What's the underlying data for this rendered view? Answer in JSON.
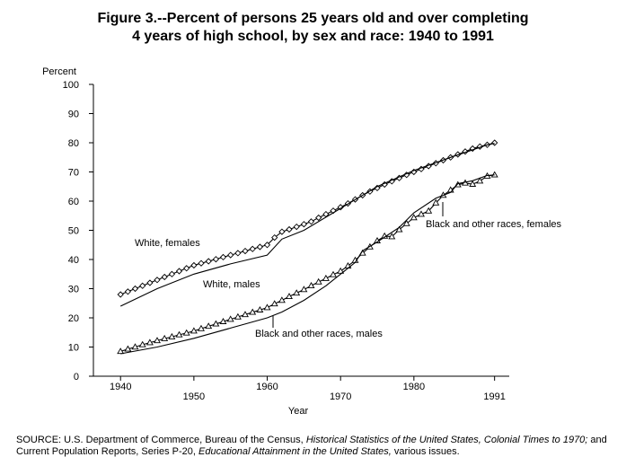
{
  "title": {
    "line1": "Figure 3.--Percent of persons 25 years old and over completing",
    "line2": "4 years of high school, by sex and race:  1940 to 1991"
  },
  "chart_data": {
    "type": "line",
    "ylabel": "Percent",
    "xlabel": "Year",
    "xlim": [
      1936.3,
      1993
    ],
    "ylim": [
      0,
      100
    ],
    "yticks": [
      0,
      10,
      20,
      30,
      40,
      50,
      60,
      70,
      80,
      90,
      100
    ],
    "xticks_upper": [
      1940,
      1960,
      1980
    ],
    "xticks_lower": [
      1950,
      1970,
      1991
    ],
    "series": [
      {
        "name": "White, females",
        "marker": "diamond",
        "x": [
          1940,
          1941,
          1942,
          1943,
          1944,
          1945,
          1946,
          1947,
          1948,
          1949,
          1950,
          1951,
          1952,
          1953,
          1954,
          1955,
          1956,
          1957,
          1958,
          1959,
          1960,
          1961,
          1962,
          1963,
          1964,
          1965,
          1966,
          1967,
          1968,
          1969,
          1970,
          1971,
          1972,
          1973,
          1974,
          1975,
          1976,
          1977,
          1978,
          1979,
          1980,
          1981,
          1982,
          1983,
          1984,
          1985,
          1986,
          1987,
          1988,
          1989,
          1990,
          1991
        ],
        "values": [
          28,
          29,
          30,
          31,
          32,
          33,
          34,
          35,
          36,
          37,
          38,
          38.7,
          39.4,
          40.1,
          40.8,
          41.5,
          42.2,
          42.9,
          43.6,
          44.3,
          45,
          47.5,
          49.5,
          50.3,
          51.2,
          52.1,
          53,
          54.3,
          55.5,
          56.7,
          57.9,
          59.2,
          60.6,
          62,
          63.3,
          64.5,
          65.7,
          66.8,
          67.9,
          69,
          70,
          71,
          72,
          73,
          74,
          75,
          76,
          77,
          78,
          78.7,
          79.3,
          80
        ]
      },
      {
        "name": "White, males",
        "marker": "none",
        "x": [
          1940,
          1945,
          1950,
          1955,
          1960,
          1962,
          1965,
          1970,
          1975,
          1980,
          1985,
          1990,
          1991
        ],
        "values": [
          24,
          30,
          35,
          38.5,
          41.5,
          47,
          50,
          57.5,
          65,
          70.5,
          75,
          79.3,
          79.8
        ]
      },
      {
        "name": "Black and other races, females",
        "marker": "triangle",
        "x": [
          1940,
          1941,
          1942,
          1943,
          1944,
          1945,
          1946,
          1947,
          1948,
          1949,
          1950,
          1951,
          1952,
          1953,
          1954,
          1955,
          1956,
          1957,
          1958,
          1959,
          1960,
          1961,
          1962,
          1963,
          1964,
          1965,
          1966,
          1967,
          1968,
          1969,
          1970,
          1971,
          1972,
          1973,
          1974,
          1975,
          1976,
          1977,
          1978,
          1979,
          1980,
          1981,
          1982,
          1983,
          1984,
          1985,
          1986,
          1987,
          1988,
          1989,
          1990,
          1991
        ],
        "values": [
          8.5,
          9.3,
          10,
          10.8,
          11.5,
          12.2,
          12.9,
          13.5,
          14.2,
          14.8,
          15.5,
          16.3,
          17.1,
          17.9,
          18.7,
          19.5,
          20.3,
          21.1,
          21.9,
          22.7,
          23.5,
          24.8,
          26,
          27.3,
          28.5,
          29.7,
          31,
          32.3,
          33.5,
          34.8,
          36,
          37.8,
          39.7,
          42.2,
          44.3,
          46.4,
          48,
          47.8,
          50.2,
          52.3,
          54.3,
          55.5,
          56.6,
          59.4,
          62,
          63.8,
          65.6,
          66.2,
          65.8,
          66.9,
          68.6,
          69
        ]
      },
      {
        "name": "Black and other races, males",
        "marker": "none",
        "x": [
          1940,
          1945,
          1950,
          1955,
          1960,
          1962,
          1965,
          1968,
          1970,
          1972,
          1973,
          1975,
          1978,
          1980,
          1983,
          1985,
          1986,
          1988,
          1990,
          1991
        ],
        "values": [
          7.7,
          10,
          13,
          16.5,
          20,
          22,
          26,
          31,
          35,
          39,
          43,
          46,
          51,
          56,
          61,
          63,
          66,
          67,
          68.8,
          69
        ]
      }
    ],
    "annotations": [
      {
        "label": "White, females"
      },
      {
        "label": "White, males"
      },
      {
        "label": "Black and other races, females"
      },
      {
        "label": "Black and other races, males"
      }
    ]
  },
  "source": {
    "prefix": "SOURCE:  U.S. Department of Commerce, Bureau of the Census,",
    "italic1": "Historical Statistics of the United States, Colonial Times to 1970;",
    "and_word": "and",
    "line2_prefix": "Current Population Reports, Series P-20,",
    "italic2": "Educational Attainment in the United States,",
    "suffix": "various issues."
  }
}
